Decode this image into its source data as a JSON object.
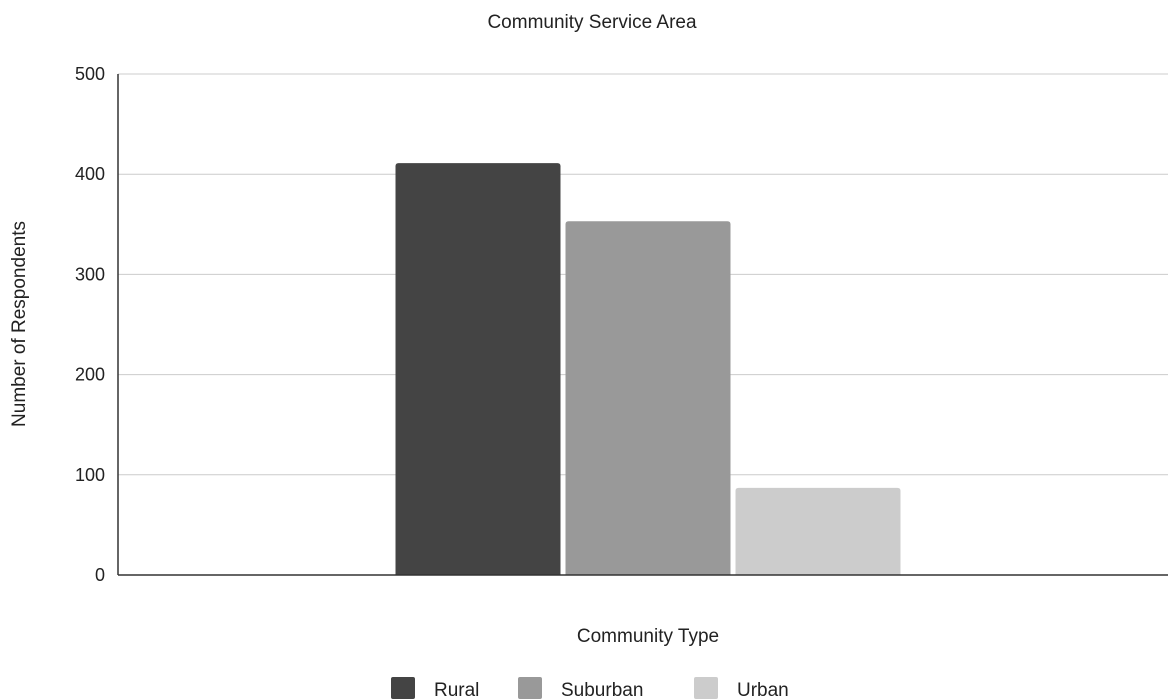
{
  "chart_data": {
    "type": "bar",
    "title": "Community Service Area",
    "xlabel": "Community Type",
    "ylabel": "Number of Respondents",
    "ylim": [
      0,
      500
    ],
    "yticks": [
      0,
      100,
      200,
      300,
      400,
      500
    ],
    "grid": true,
    "legend_position": "bottom",
    "series": [
      {
        "name": "Rural",
        "value": 411,
        "color": "#444444"
      },
      {
        "name": "Suburban",
        "value": 353,
        "color": "#999999"
      },
      {
        "name": "Urban",
        "value": 87,
        "color": "#cccccc"
      }
    ]
  }
}
